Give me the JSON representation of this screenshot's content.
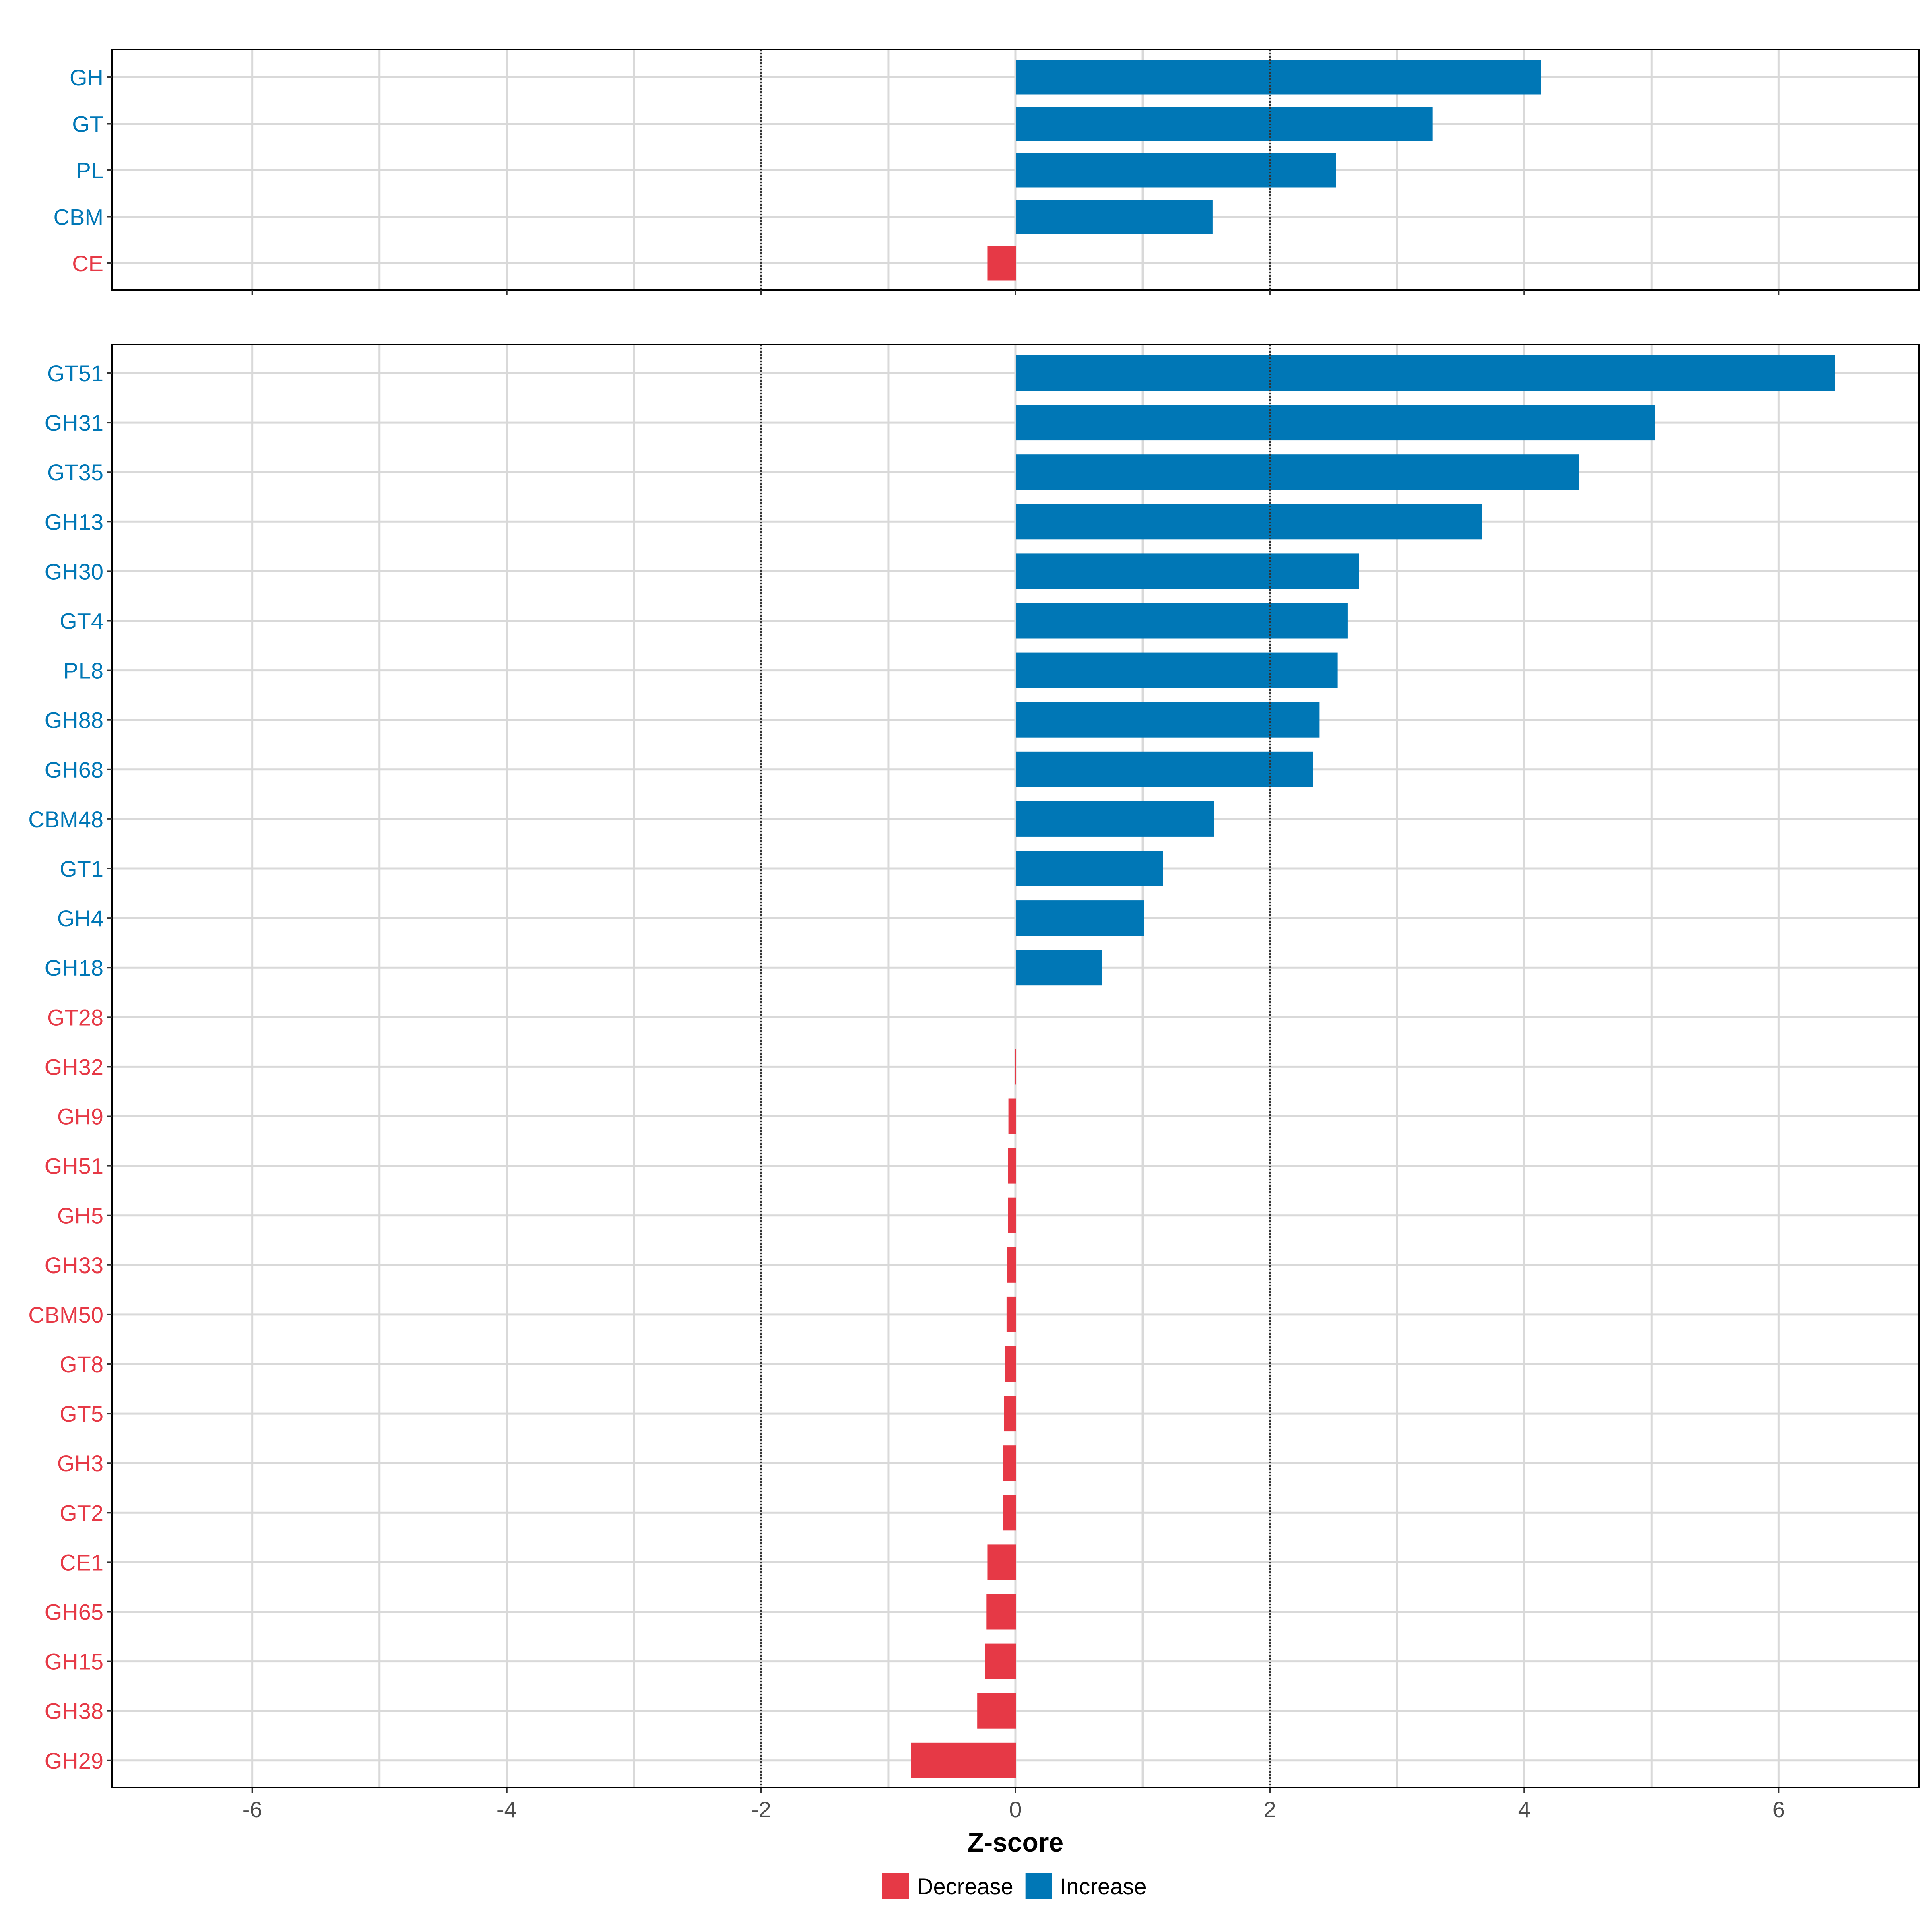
{
  "colors": {
    "decrease": "#E63946",
    "increase": "#0077B6",
    "grid": "#D9D9D9",
    "axis": "#000000",
    "tick_text": "#4D4D4D"
  },
  "chart_data": {
    "type": "bar",
    "orientation": "horizontal",
    "xlabel": "Z-score",
    "xlim": [
      -7.1,
      7.1
    ],
    "x_ticks": [
      -6,
      -4,
      -2,
      0,
      2,
      4,
      6
    ],
    "x_tick_labels": [
      "-6",
      "-4",
      "-2",
      "0",
      "2",
      "4",
      "6"
    ],
    "reference_lines": [
      -2,
      2
    ],
    "grid": true,
    "legend": {
      "position": "bottom",
      "entries": [
        {
          "label": "Decrease",
          "key": "decrease"
        },
        {
          "label": "Increase",
          "key": "increase"
        }
      ]
    },
    "panels": [
      {
        "categories": [
          "GH",
          "GT",
          "PL",
          "CBM",
          "CE"
        ],
        "values": [
          4.13,
          3.28,
          2.52,
          1.55,
          -0.22
        ],
        "direction": [
          "increase",
          "increase",
          "increase",
          "increase",
          "decrease"
        ]
      },
      {
        "categories": [
          "GT51",
          "GH31",
          "GT35",
          "GH13",
          "GH30",
          "GT4",
          "PL8",
          "GH88",
          "GH68",
          "CBM48",
          "GT1",
          "GH4",
          "GH18",
          "GT28",
          "GH32",
          "GH9",
          "GH51",
          "GH5",
          "GH33",
          "CBM50",
          "GT8",
          "GT5",
          "GH3",
          "GT2",
          "CE1",
          "GH65",
          "GH15",
          "GH38",
          "GH29"
        ],
        "values": [
          6.44,
          5.03,
          4.43,
          3.67,
          2.7,
          2.61,
          2.53,
          2.39,
          2.34,
          1.56,
          1.16,
          1.01,
          0.68,
          0.0,
          -0.005,
          -0.055,
          -0.06,
          -0.06,
          -0.065,
          -0.07,
          -0.08,
          -0.09,
          -0.095,
          -0.1,
          -0.22,
          -0.23,
          -0.24,
          -0.3,
          -0.82
        ],
        "direction": [
          "increase",
          "increase",
          "increase",
          "increase",
          "increase",
          "increase",
          "increase",
          "increase",
          "increase",
          "increase",
          "increase",
          "increase",
          "increase",
          "decrease",
          "decrease",
          "decrease",
          "decrease",
          "decrease",
          "decrease",
          "decrease",
          "decrease",
          "decrease",
          "decrease",
          "decrease",
          "decrease",
          "decrease",
          "decrease",
          "decrease",
          "decrease"
        ]
      }
    ]
  }
}
